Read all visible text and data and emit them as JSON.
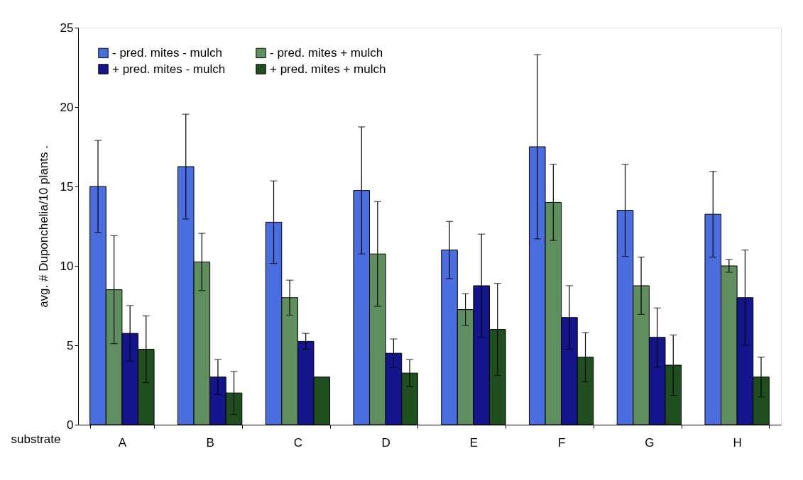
{
  "chart_data": {
    "type": "bar",
    "xlabel": "substrate",
    "ylabel": "avg. # Duponchelia/10 plants      .",
    "categories": [
      "A",
      "B",
      "C",
      "D",
      "E",
      "F",
      "G",
      "H"
    ],
    "series": [
      {
        "name": "- pred. mites - mulch",
        "color": "#4a6ee0",
        "values": [
          15,
          16.25,
          12.75,
          14.75,
          11,
          17.5,
          13.5,
          13.25
        ],
        "errors": [
          2.9,
          3.3,
          2.6,
          4.0,
          1.8,
          5.8,
          2.9,
          2.7
        ]
      },
      {
        "name": "- pred. mites + mulch",
        "color": "#5f8f5f",
        "values": [
          8.5,
          10.25,
          8,
          10.75,
          7.25,
          14,
          8.75,
          10
        ],
        "errors": [
          3.4,
          1.8,
          1.1,
          3.3,
          1.0,
          2.4,
          1.8,
          0.4
        ]
      },
      {
        "name": "+ pred. mites - mulch",
        "color": "#14148c",
        "values": [
          5.75,
          3,
          5.25,
          4.5,
          8.75,
          6.75,
          5.5,
          8
        ],
        "errors": [
          1.75,
          1.1,
          0.5,
          0.9,
          3.25,
          2.0,
          1.85,
          3.0
        ]
      },
      {
        "name": "+ pred. mites + mulch",
        "color": "#1f4f1f",
        "values": [
          4.75,
          2,
          3,
          3.25,
          6,
          4.25,
          3.75,
          3
        ],
        "errors": [
          2.1,
          1.35,
          null,
          0.85,
          2.9,
          1.55,
          1.9,
          1.25
        ]
      }
    ],
    "ylim": [
      0,
      25
    ],
    "yticks": [
      0,
      5,
      10,
      15,
      20,
      25
    ],
    "grid": false,
    "legend": "top left"
  }
}
